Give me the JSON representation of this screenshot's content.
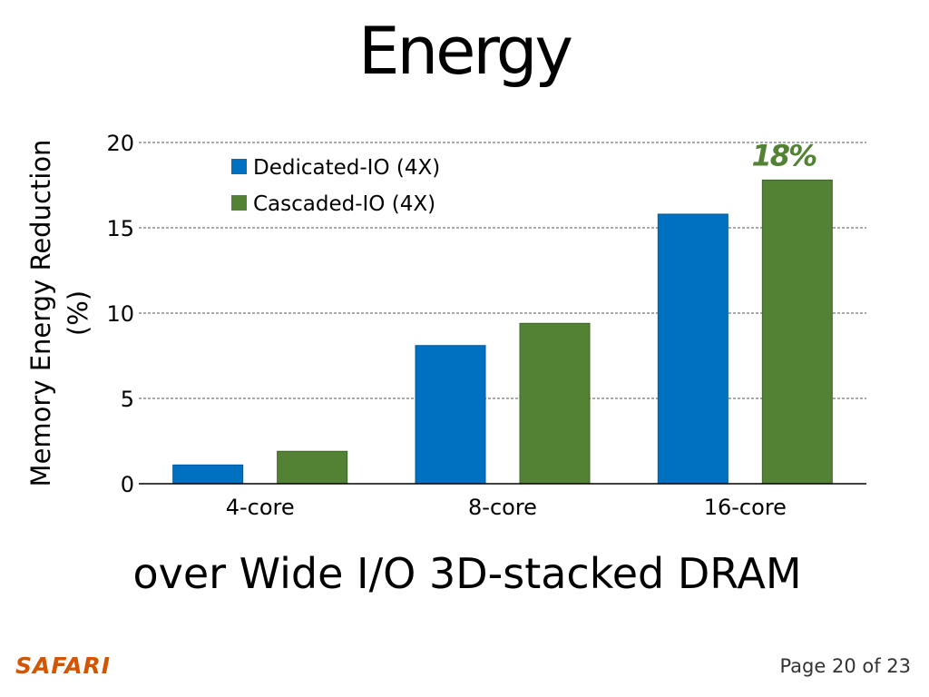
{
  "slide": {
    "title": "Energy",
    "subtitle": "over Wide I/O 3D-stacked DRAM",
    "logo": "SAFARI",
    "page": "Page 20 of 23"
  },
  "colors": {
    "series1": "#0070c0",
    "series2": "#548235",
    "annotation": "#548235",
    "logo": "#d45500"
  },
  "chart_data": {
    "type": "bar",
    "categories": [
      "4-core",
      "8-core",
      "16-core"
    ],
    "series": [
      {
        "name": "Dedicated-IO (4X)",
        "values": [
          1.1,
          8.1,
          15.8
        ]
      },
      {
        "name": "Cascaded-IO (4X)",
        "values": [
          1.9,
          9.4,
          17.8
        ]
      }
    ],
    "ylabel_line1": "Memory Energy Reduction",
    "ylabel_line2": "(%)",
    "ylim": [
      0,
      20
    ],
    "yticks": [
      0,
      5,
      10,
      15,
      20
    ],
    "grid": true,
    "legend": "top-left",
    "annotation": {
      "text": "18%",
      "category": "16-core",
      "series": 1
    }
  }
}
